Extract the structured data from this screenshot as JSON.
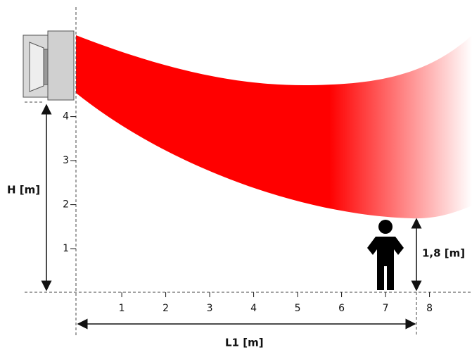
{
  "labels": {
    "height": "H [m]",
    "length": "L1 [m]",
    "person_height": "1,8 [m]"
  },
  "x_axis": {
    "ticks": [
      1,
      2,
      3,
      4,
      5,
      6,
      7,
      8
    ]
  },
  "y_axis": {
    "ticks": [
      1,
      2,
      3,
      4
    ]
  }
}
